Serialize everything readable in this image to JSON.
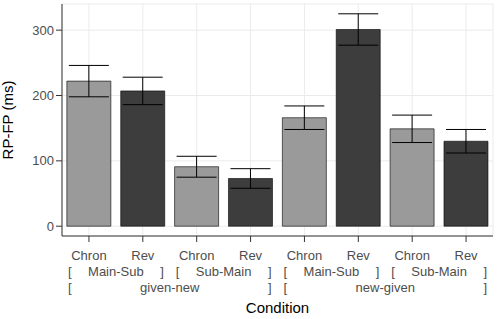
{
  "chart_data": {
    "type": "bar",
    "categories": [
      "Chron",
      "Rev",
      "Chron",
      "Rev",
      "Chron",
      "Rev",
      "Chron",
      "Rev"
    ],
    "values": [
      222,
      207,
      91,
      73,
      166,
      301,
      149,
      130
    ],
    "errors": [
      24,
      21,
      16,
      15,
      18,
      24,
      21,
      18
    ],
    "colors": [
      "#9a9a9a",
      "#3d3d3d",
      "#9a9a9a",
      "#3d3d3d",
      "#9a9a9a",
      "#3d3d3d",
      "#9a9a9a",
      "#3d3d3d"
    ],
    "subgroups": [
      "[ Main-Sub ]",
      "[ Sub-Main ]",
      "[ Main-Sub ]",
      "[ Sub-Main ]"
    ],
    "groups": [
      "[ given-new ]",
      "[ new-given ]"
    ],
    "x_label": "Condition",
    "y_label": "RP-FP (ms)",
    "ylim": [
      -15,
      340
    ],
    "yticks": [
      0,
      100,
      200,
      300
    ],
    "grid": true
  }
}
